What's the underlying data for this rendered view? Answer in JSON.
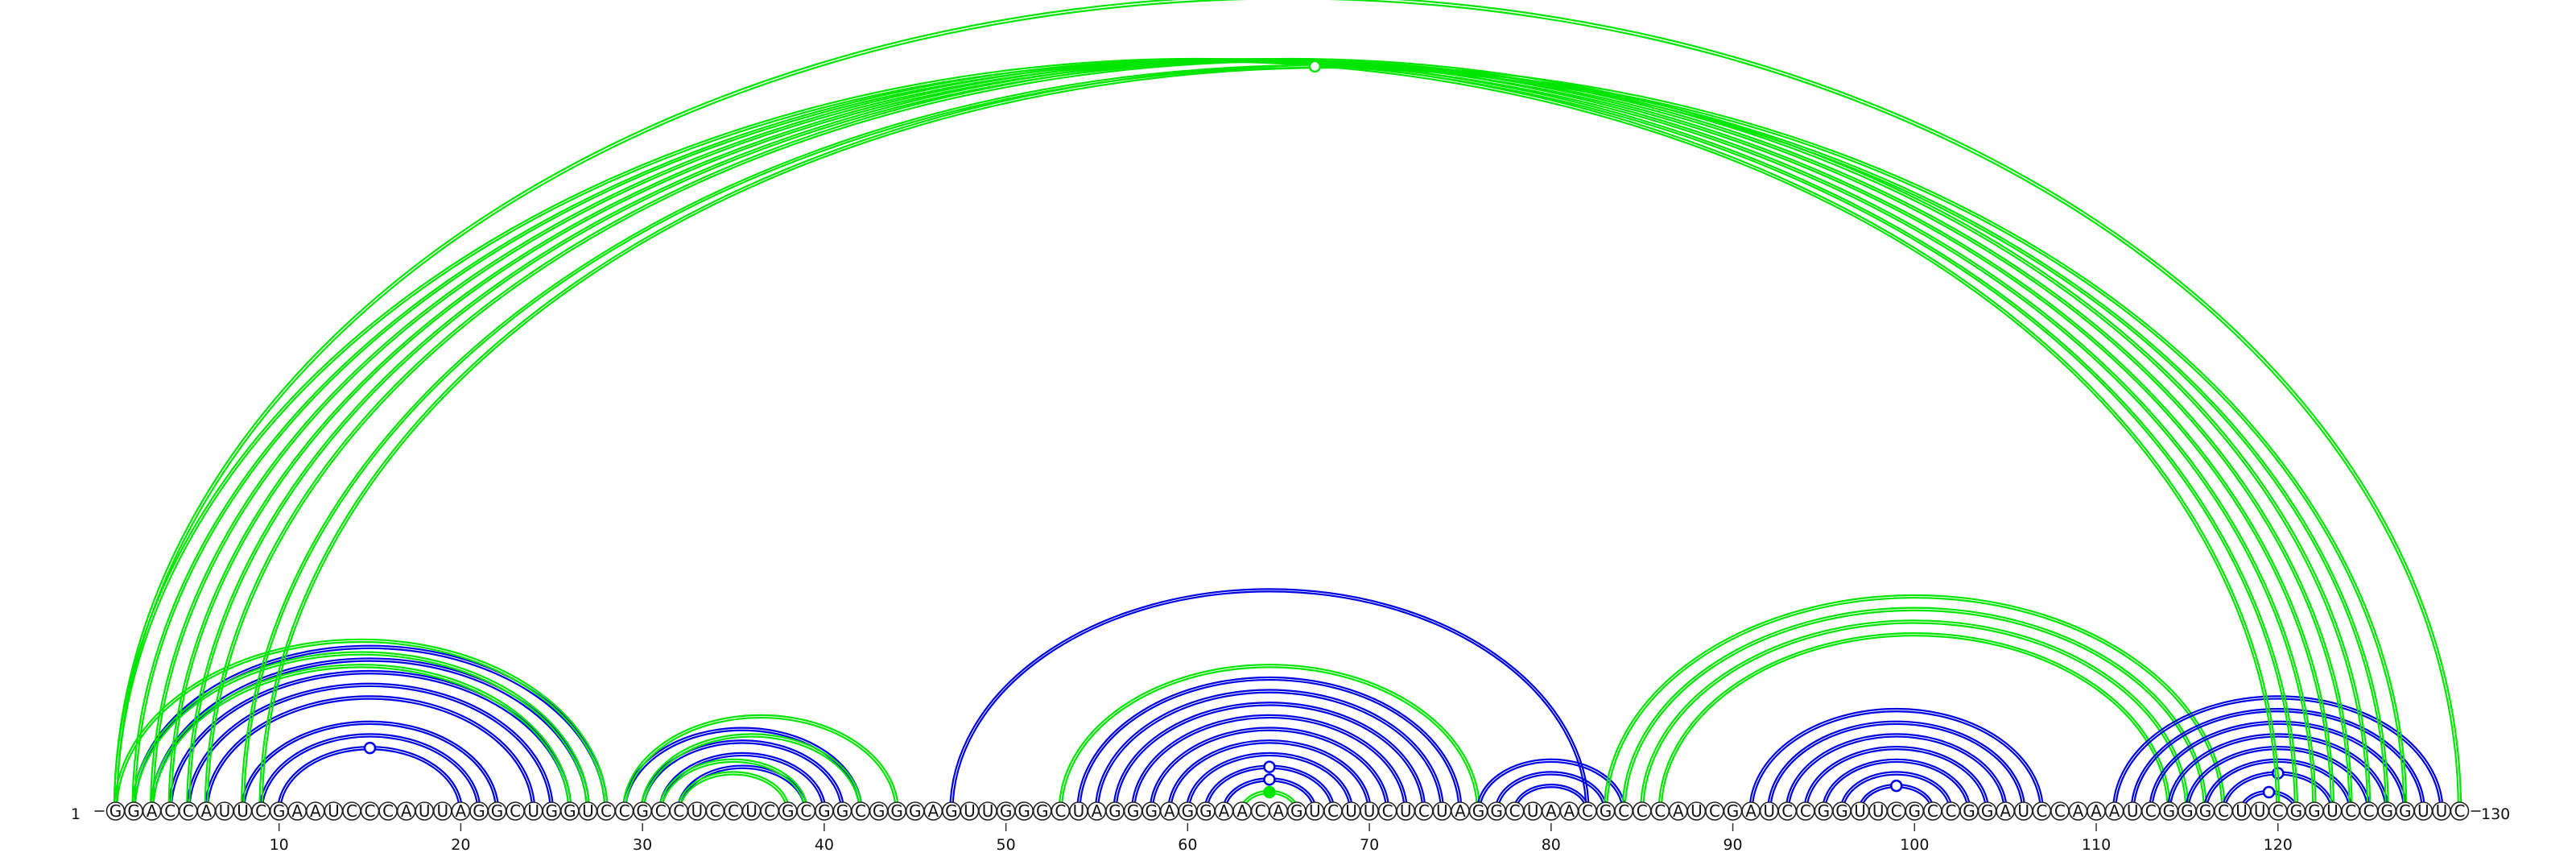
{
  "sequence": "GGACCAUUCGAAUCCCAUUAGGCUGGUCCGCCUCCUCGCGGCGGGAGUUGGGCUAGGGAGGAACAGUCUUCUCUAGGCUAACGCCCAUCGAUCCGGUUCGCCGGAUCCAAAUCGGGCUUCGGUCCGGUUC",
  "start_label": "1",
  "end_label": "130",
  "tick_labels": [
    "10",
    "20",
    "30",
    "40",
    "50",
    "60",
    "70",
    "80",
    "90",
    "100",
    "110",
    "120"
  ],
  "colors": {
    "blue": "#0000e6",
    "green": "#00e600"
  },
  "chart_data": {
    "type": "arc-diagram",
    "length": 130,
    "ticks": [
      10,
      20,
      30,
      40,
      50,
      60,
      70,
      80,
      90,
      100,
      110,
      120
    ],
    "arc_groups": [
      {
        "color": "blue",
        "double": true,
        "pairs": [
          [
            2,
            28
          ],
          [
            3,
            27
          ],
          [
            4,
            26
          ],
          [
            5,
            25
          ],
          [
            6,
            24
          ],
          [
            8,
            22
          ],
          [
            9,
            21
          ],
          [
            10,
            20
          ]
        ],
        "marker": "hollow"
      },
      {
        "color": "green",
        "double": true,
        "pairs": [
          [
            1,
            28
          ],
          [
            2,
            27
          ],
          [
            3,
            26
          ]
        ]
      },
      {
        "color": "blue",
        "double": true,
        "pairs": [
          [
            29,
            42
          ],
          [
            30,
            41
          ],
          [
            31,
            40
          ],
          [
            32,
            39
          ]
        ]
      },
      {
        "color": "green",
        "double": true,
        "pairs": [
          [
            29,
            44
          ],
          [
            30,
            42
          ],
          [
            31,
            39
          ],
          [
            32,
            38
          ]
        ]
      },
      {
        "color": "blue",
        "double": true,
        "pairs": [
          [
            47,
            82
          ]
        ]
      },
      {
        "color": "green",
        "double": true,
        "pairs": [
          [
            53,
            76
          ]
        ]
      },
      {
        "color": "blue",
        "double": true,
        "pairs": [
          [
            54,
            75
          ],
          [
            55,
            74
          ],
          [
            56,
            73
          ],
          [
            57,
            72
          ],
          [
            58,
            71
          ],
          [
            59,
            70
          ],
          [
            60,
            69
          ],
          [
            61,
            68
          ]
        ],
        "marker": "hollow"
      },
      {
        "color": "blue",
        "double": true,
        "pairs": [
          [
            62,
            67
          ]
        ],
        "marker": "hollow"
      },
      {
        "color": "green",
        "double": true,
        "pairs": [
          [
            63,
            66
          ]
        ],
        "marker": "filled"
      },
      {
        "color": "blue",
        "double": true,
        "pairs": [
          [
            76,
            84
          ],
          [
            77,
            83
          ],
          [
            78,
            82
          ]
        ]
      },
      {
        "color": "green",
        "double": true,
        "pairs": [
          [
            83,
            117
          ],
          [
            84,
            116
          ],
          [
            85,
            115
          ],
          [
            86,
            114
          ]
        ]
      },
      {
        "color": "blue",
        "double": true,
        "pairs": [
          [
            91,
            107
          ],
          [
            92,
            106
          ],
          [
            93,
            105
          ],
          [
            94,
            104
          ],
          [
            95,
            103
          ],
          [
            96,
            102
          ],
          [
            97,
            101
          ]
        ],
        "marker": "hollow"
      },
      {
        "color": "blue",
        "double": true,
        "pairs": [
          [
            111,
            129
          ],
          [
            112,
            128
          ],
          [
            113,
            127
          ],
          [
            114,
            126
          ],
          [
            115,
            125
          ],
          [
            116,
            124
          ],
          [
            117,
            123
          ]
        ],
        "marker": "hollow"
      },
      {
        "color": "blue",
        "double": true,
        "pairs": [
          [
            118,
            121
          ]
        ],
        "marker": "hollow"
      },
      {
        "color": "green",
        "double": true,
        "pairs": [
          [
            1,
            120
          ],
          [
            2,
            121
          ],
          [
            3,
            122
          ],
          [
            4,
            123
          ],
          [
            5,
            124
          ],
          [
            6,
            125
          ],
          [
            8,
            126
          ],
          [
            9,
            127
          ],
          [
            1,
            130
          ]
        ],
        "marker": "hollow"
      }
    ]
  }
}
